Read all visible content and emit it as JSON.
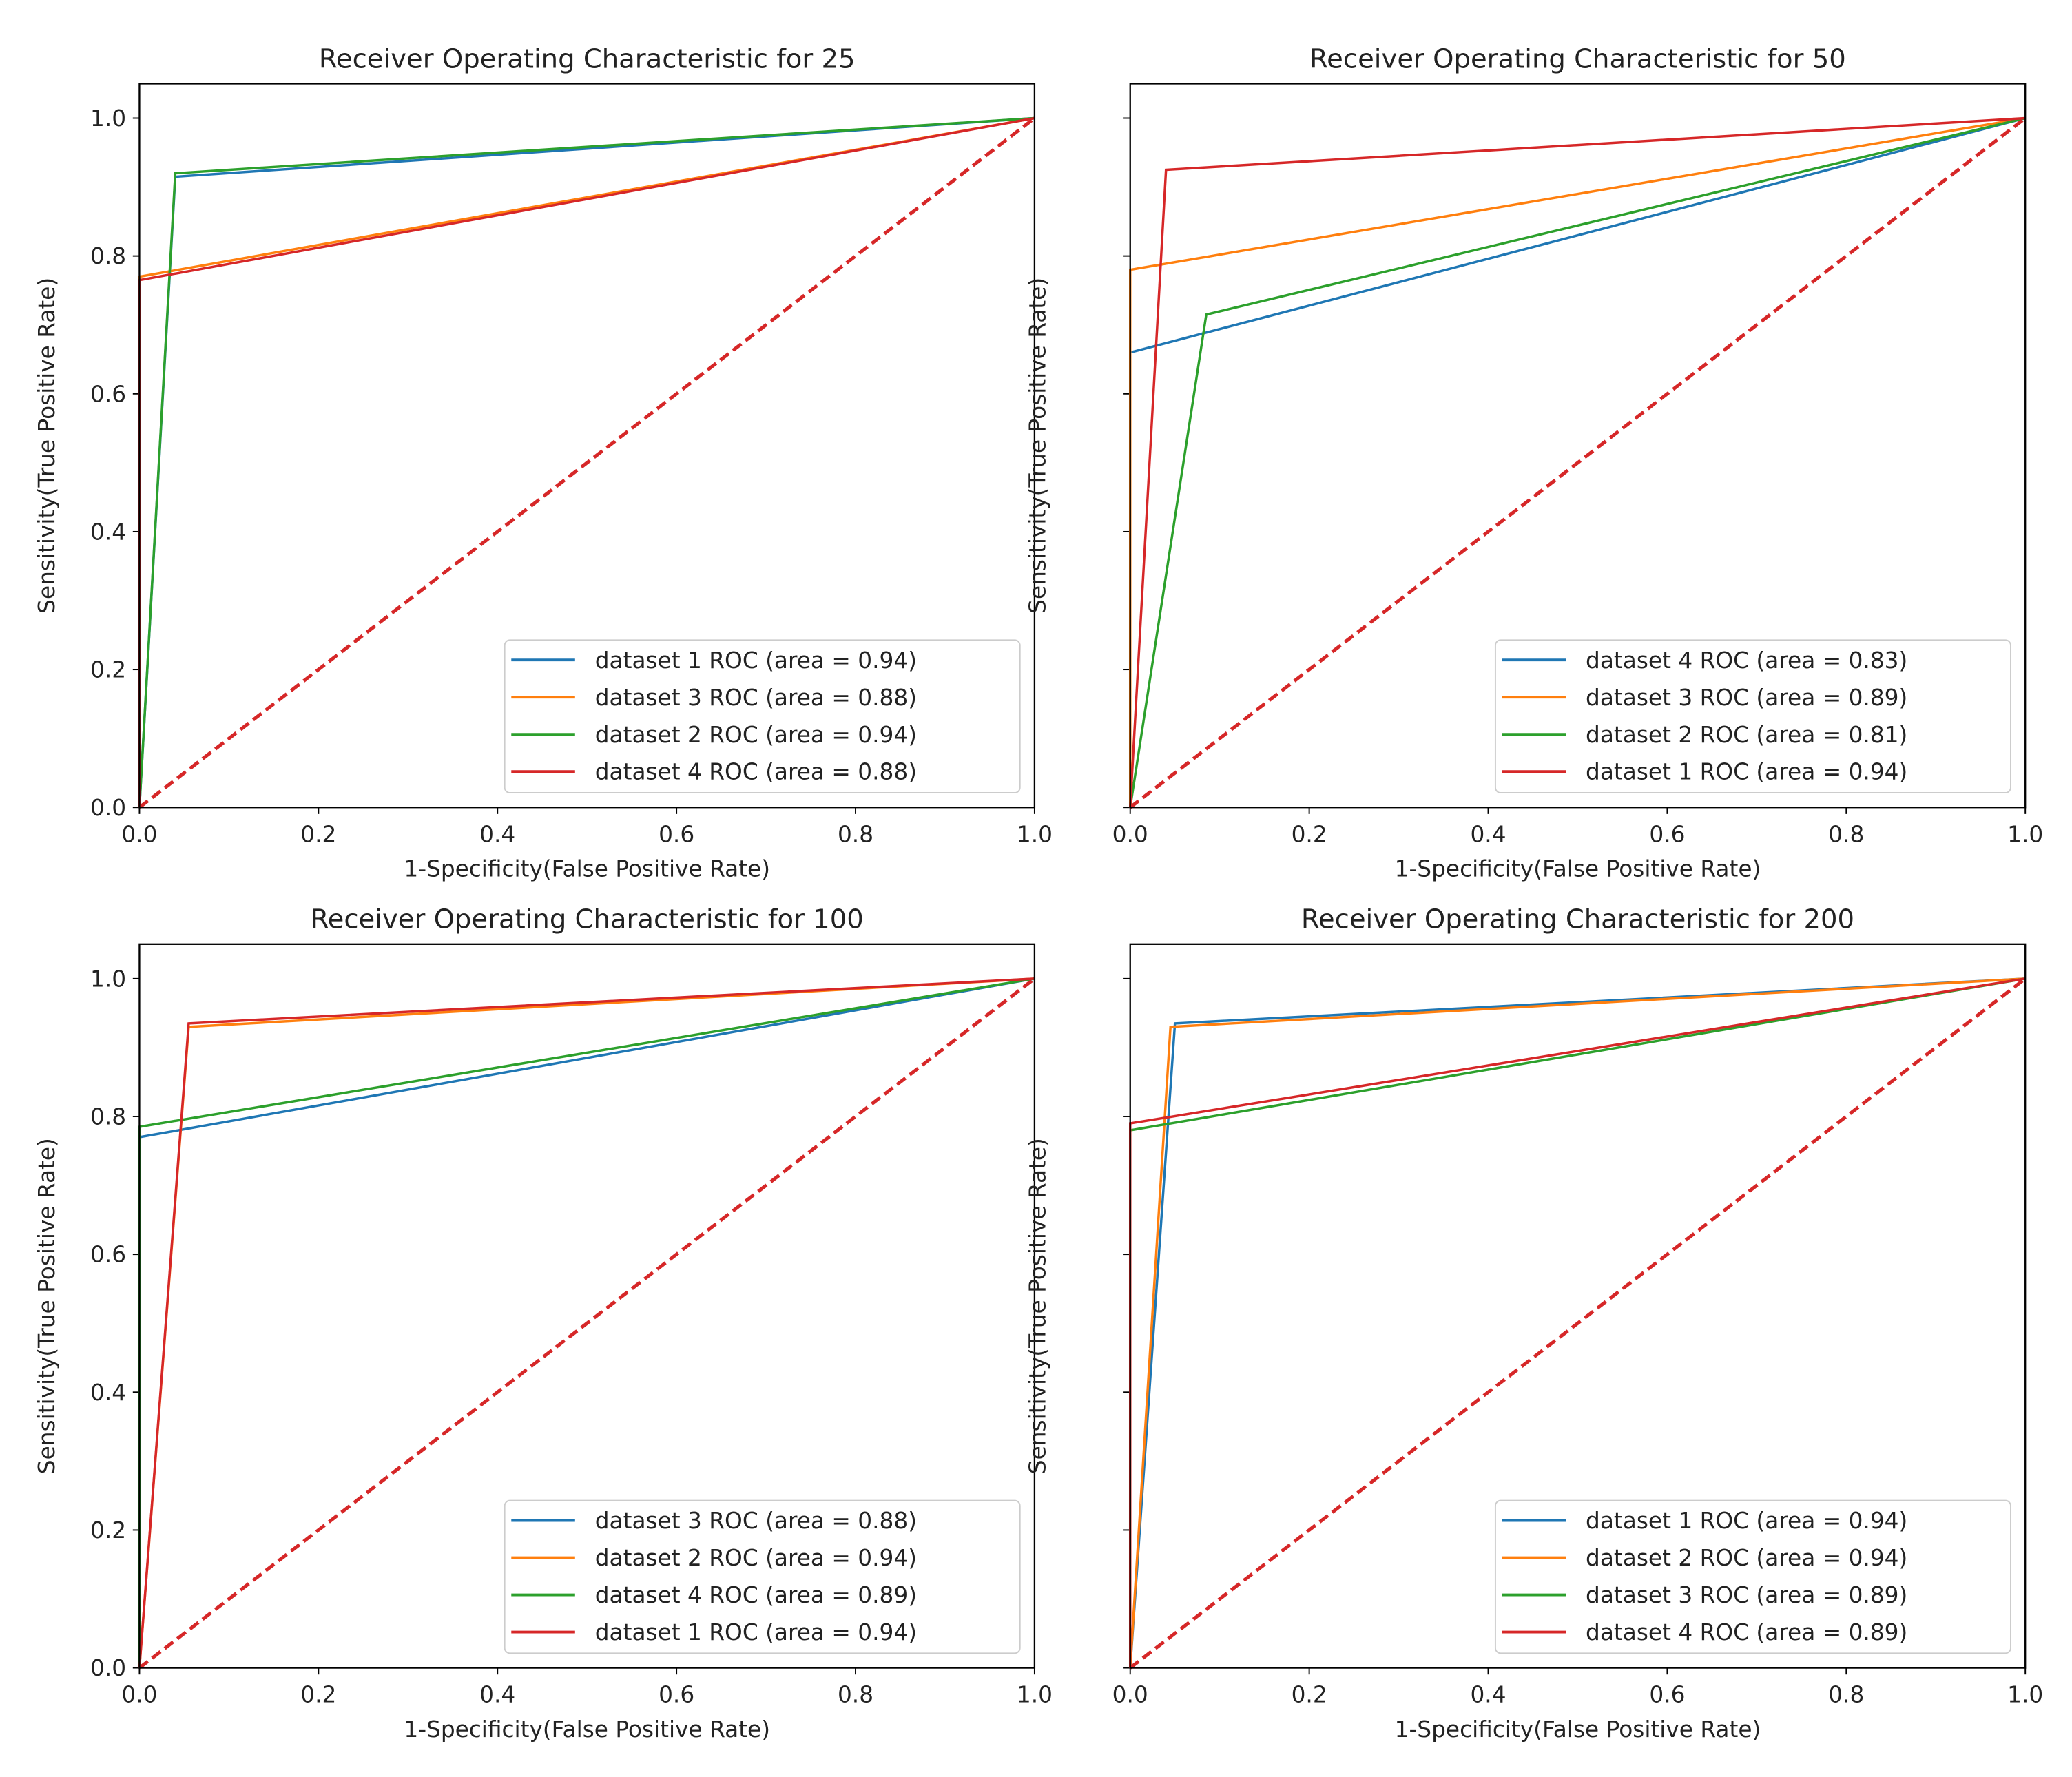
{
  "chart_data": [
    {
      "type": "line",
      "title": "Receiver Operating Characteristic for 25",
      "x_label": "1-Specificity(False Positive Rate)",
      "y_label": "Sensitivity(True Positive Rate)",
      "xlim": [
        0,
        1
      ],
      "ylim": [
        0,
        1.05
      ],
      "xticks": [
        {
          "value": 0,
          "label": "0.0"
        },
        0.2,
        0.4,
        0.6,
        0.8,
        {
          "value": 1,
          "label": "1.0"
        }
      ],
      "yticks": [
        {
          "value": 0,
          "label": "0.0"
        },
        0.2,
        0.4,
        0.6,
        0.8,
        {
          "value": 1,
          "label": "1.0"
        }
      ],
      "show_ytick_labels": true,
      "legend": "lower right",
      "grid": false,
      "series": [
        {
          "name": "dataset 1 ROC (area = 0.94)",
          "color": "#1f77b4",
          "x": [
            0,
            0.04,
            1
          ],
          "values": [
            0,
            0.915,
            1
          ]
        },
        {
          "name": "dataset 3 ROC (area = 0.88)",
          "color": "#ff7f0e",
          "x": [
            0,
            0,
            1
          ],
          "values": [
            0,
            0.77,
            1
          ]
        },
        {
          "name": "dataset 2 ROC (area = 0.94)",
          "color": "#2ca02c",
          "x": [
            0,
            0.04,
            1
          ],
          "values": [
            0,
            0.92,
            1
          ]
        },
        {
          "name": "dataset 4 ROC (area = 0.88)",
          "color": "#d62728",
          "x": [
            0,
            0,
            1
          ],
          "values": [
            0,
            0.765,
            1
          ]
        },
        {
          "color": "#d62728",
          "dashed": true,
          "x": [
            0,
            1
          ],
          "values": [
            0,
            1
          ]
        }
      ]
    },
    {
      "type": "line",
      "title": "Receiver Operating Characteristic for 50",
      "x_label": "1-Specificity(False Positive Rate)",
      "y_label": "Sensitivity(True Positive Rate)",
      "xlim": [
        0,
        1
      ],
      "ylim": [
        0,
        1.05
      ],
      "xticks": [
        {
          "value": 0,
          "label": "0.0"
        },
        0.2,
        0.4,
        0.6,
        0.8,
        {
          "value": 1,
          "label": "1.0"
        }
      ],
      "yticks": [
        0,
        0.2,
        0.4,
        0.6,
        0.8,
        1
      ],
      "show_ytick_labels": false,
      "legend": "lower right",
      "grid": false,
      "series": [
        {
          "name": "dataset 4 ROC (area = 0.83)",
          "color": "#1f77b4",
          "x": [
            0,
            0,
            1
          ],
          "values": [
            0,
            0.66,
            1
          ]
        },
        {
          "name": "dataset 3 ROC (area = 0.89)",
          "color": "#ff7f0e",
          "x": [
            0,
            0,
            1
          ],
          "values": [
            0,
            0.78,
            1
          ]
        },
        {
          "name": "dataset 2 ROC (area = 0.81)",
          "color": "#2ca02c",
          "x": [
            0,
            0.085,
            1
          ],
          "values": [
            0,
            0.715,
            1
          ]
        },
        {
          "name": "dataset 1 ROC (area = 0.94)",
          "color": "#d62728",
          "x": [
            0,
            0.04,
            1
          ],
          "values": [
            0,
            0.925,
            1
          ]
        },
        {
          "color": "#d62728",
          "dashed": true,
          "x": [
            0,
            1
          ],
          "values": [
            0,
            1
          ]
        }
      ]
    },
    {
      "type": "line",
      "title": "Receiver Operating Characteristic for 100",
      "x_label": "1-Specificity(False Positive Rate)",
      "y_label": "Sensitivity(True Positive Rate)",
      "xlim": [
        0,
        1
      ],
      "ylim": [
        0,
        1.05
      ],
      "xticks": [
        {
          "value": 0,
          "label": "0.0"
        },
        0.2,
        0.4,
        0.6,
        0.8,
        {
          "value": 1,
          "label": "1.0"
        }
      ],
      "yticks": [
        {
          "value": 0,
          "label": "0.0"
        },
        0.2,
        0.4,
        0.6,
        0.8,
        {
          "value": 1,
          "label": "1.0"
        }
      ],
      "show_ytick_labels": true,
      "legend": "lower right",
      "grid": false,
      "series": [
        {
          "name": "dataset 3 ROC (area = 0.88)",
          "color": "#1f77b4",
          "x": [
            0,
            0,
            1
          ],
          "values": [
            0,
            0.77,
            1
          ]
        },
        {
          "name": "dataset 2 ROC (area = 0.94)",
          "color": "#ff7f0e",
          "x": [
            0,
            0.055,
            1
          ],
          "values": [
            0,
            0.93,
            1
          ]
        },
        {
          "name": "dataset 4 ROC (area = 0.89)",
          "color": "#2ca02c",
          "x": [
            0,
            0,
            1
          ],
          "values": [
            0,
            0.785,
            1
          ]
        },
        {
          "name": "dataset 1 ROC (area = 0.94)",
          "color": "#d62728",
          "x": [
            0,
            0.055,
            1
          ],
          "values": [
            0,
            0.935,
            1
          ]
        },
        {
          "color": "#d62728",
          "dashed": true,
          "x": [
            0,
            1
          ],
          "values": [
            0,
            1
          ]
        }
      ]
    },
    {
      "type": "line",
      "title": "Receiver Operating Characteristic for 200",
      "x_label": "1-Specificity(False Positive Rate)",
      "y_label": "Sensitivity(True Positive Rate)",
      "xlim": [
        0,
        1
      ],
      "ylim": [
        0,
        1.05
      ],
      "xticks": [
        {
          "value": 0,
          "label": "0.0"
        },
        0.2,
        0.4,
        0.6,
        0.8,
        {
          "value": 1,
          "label": "1.0"
        }
      ],
      "yticks": [
        0,
        0.2,
        0.4,
        0.6,
        0.8,
        1
      ],
      "show_ytick_labels": false,
      "legend": "lower right",
      "grid": false,
      "series": [
        {
          "name": "dataset 1 ROC (area = 0.94)",
          "color": "#1f77b4",
          "x": [
            0,
            0.05,
            1
          ],
          "values": [
            0,
            0.935,
            1
          ]
        },
        {
          "name": "dataset 2 ROC (area = 0.94)",
          "color": "#ff7f0e",
          "x": [
            0,
            0.045,
            1
          ],
          "values": [
            0,
            0.93,
            1
          ]
        },
        {
          "name": "dataset 3 ROC (area = 0.89)",
          "color": "#2ca02c",
          "x": [
            0,
            0,
            1
          ],
          "values": [
            0,
            0.78,
            1
          ]
        },
        {
          "name": "dataset 4 ROC (area = 0.89)",
          "color": "#d62728",
          "x": [
            0,
            0,
            1
          ],
          "values": [
            0,
            0.79,
            1
          ]
        },
        {
          "color": "#d62728",
          "dashed": true,
          "x": [
            0,
            1
          ],
          "values": [
            0,
            1
          ]
        }
      ]
    }
  ]
}
